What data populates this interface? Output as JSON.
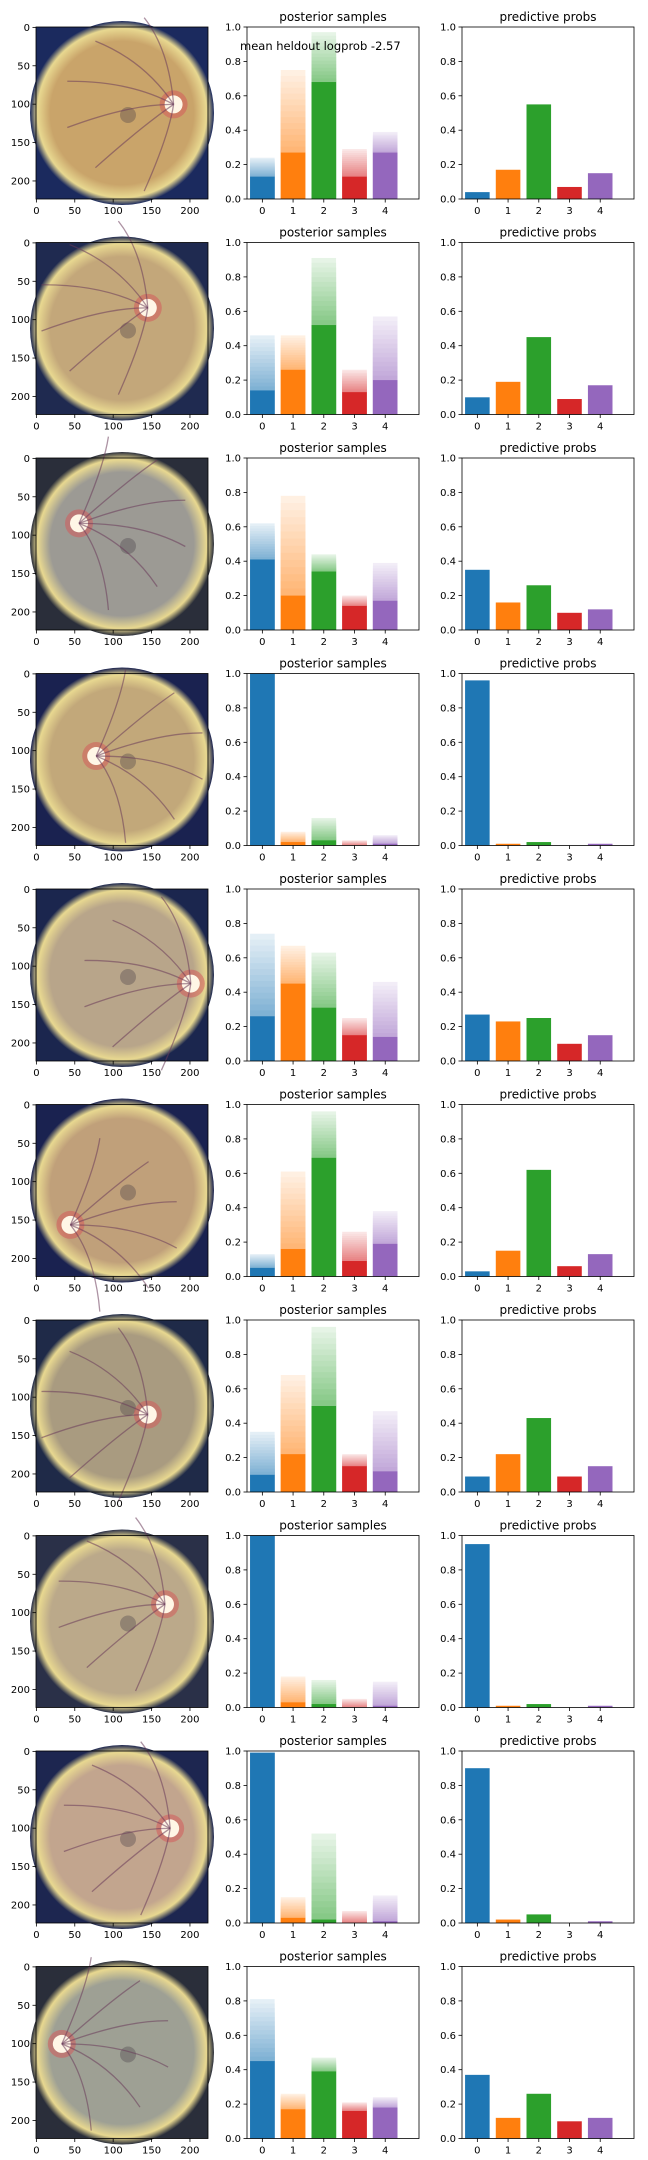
{
  "figure": {
    "annotation": "mean heldout logprob -2.57",
    "series_colors": [
      "#1f77b4",
      "#ff7f0e",
      "#2ca02c",
      "#d62728",
      "#9467bd"
    ],
    "fundus_image_axis": {
      "xticks": [
        0,
        50,
        100,
        150,
        200
      ],
      "yticks": [
        0,
        50,
        100,
        150,
        200
      ],
      "extent": 224
    },
    "posterior_axis": {
      "ylim": [
        0,
        1
      ],
      "yticks": [
        "0.0",
        "0.2",
        "0.4",
        "0.6",
        "0.8",
        "1.0"
      ]
    },
    "predictive_axis": {
      "ylim": [
        0,
        1
      ],
      "yticks": [
        "0.0",
        "0.2",
        "0.4",
        "0.6",
        "0.8",
        "1.0"
      ]
    }
  },
  "chart_data": [
    {
      "type": "bar",
      "title": "posterior samples",
      "categories": [
        "0",
        "1",
        "2",
        "3",
        "4"
      ],
      "row": 1,
      "sample_max": [
        0.24,
        0.75,
        0.97,
        0.29,
        0.39
      ],
      "solid_level": [
        0.13,
        0.27,
        0.68,
        0.13,
        0.27
      ],
      "ylim": [
        0,
        1
      ]
    },
    {
      "type": "bar",
      "title": "predictive probs",
      "categories": [
        "0",
        "1",
        "2",
        "3",
        "4"
      ],
      "row": 1,
      "values": [
        0.04,
        0.17,
        0.55,
        0.07,
        0.15
      ],
      "ylim": [
        0,
        1
      ]
    },
    {
      "type": "bar",
      "title": "posterior samples",
      "categories": [
        "0",
        "1",
        "2",
        "3",
        "4"
      ],
      "row": 2,
      "sample_max": [
        0.46,
        0.46,
        0.91,
        0.26,
        0.57
      ],
      "solid_level": [
        0.14,
        0.26,
        0.52,
        0.13,
        0.2
      ],
      "ylim": [
        0,
        1
      ]
    },
    {
      "type": "bar",
      "title": "predictive probs",
      "categories": [
        "0",
        "1",
        "2",
        "3",
        "4"
      ],
      "row": 2,
      "values": [
        0.1,
        0.19,
        0.45,
        0.09,
        0.17
      ],
      "ylim": [
        0,
        1
      ]
    },
    {
      "type": "bar",
      "title": "posterior samples",
      "categories": [
        "0",
        "1",
        "2",
        "3",
        "4"
      ],
      "row": 3,
      "sample_max": [
        0.62,
        0.78,
        0.44,
        0.2,
        0.39
      ],
      "solid_level": [
        0.41,
        0.2,
        0.34,
        0.14,
        0.17
      ],
      "ylim": [
        0,
        1
      ]
    },
    {
      "type": "bar",
      "title": "predictive probs",
      "categories": [
        "0",
        "1",
        "2",
        "3",
        "4"
      ],
      "row": 3,
      "values": [
        0.35,
        0.16,
        0.26,
        0.1,
        0.12
      ],
      "ylim": [
        0,
        1
      ]
    },
    {
      "type": "bar",
      "title": "posterior samples",
      "categories": [
        "0",
        "1",
        "2",
        "3",
        "4"
      ],
      "row": 4,
      "sample_max": [
        1.0,
        0.08,
        0.16,
        0.03,
        0.06
      ],
      "solid_level": [
        1.0,
        0.02,
        0.03,
        0.0,
        0.01
      ],
      "ylim": [
        0,
        1
      ]
    },
    {
      "type": "bar",
      "title": "predictive probs",
      "categories": [
        "0",
        "1",
        "2",
        "3",
        "4"
      ],
      "row": 4,
      "values": [
        0.96,
        0.01,
        0.02,
        0.0,
        0.01
      ],
      "ylim": [
        0,
        1
      ]
    },
    {
      "type": "bar",
      "title": "posterior samples",
      "categories": [
        "0",
        "1",
        "2",
        "3",
        "4"
      ],
      "row": 5,
      "sample_max": [
        0.74,
        0.67,
        0.63,
        0.25,
        0.46
      ],
      "solid_level": [
        0.26,
        0.45,
        0.31,
        0.15,
        0.14
      ],
      "ylim": [
        0,
        1
      ]
    },
    {
      "type": "bar",
      "title": "predictive probs",
      "categories": [
        "0",
        "1",
        "2",
        "3",
        "4"
      ],
      "row": 5,
      "values": [
        0.27,
        0.23,
        0.25,
        0.1,
        0.15
      ],
      "ylim": [
        0,
        1
      ]
    },
    {
      "type": "bar",
      "title": "posterior samples",
      "categories": [
        "0",
        "1",
        "2",
        "3",
        "4"
      ],
      "row": 6,
      "sample_max": [
        0.13,
        0.61,
        0.96,
        0.26,
        0.38
      ],
      "solid_level": [
        0.05,
        0.16,
        0.69,
        0.09,
        0.19
      ],
      "ylim": [
        0,
        1
      ]
    },
    {
      "type": "bar",
      "title": "predictive probs",
      "categories": [
        "0",
        "1",
        "2",
        "3",
        "4"
      ],
      "row": 6,
      "values": [
        0.03,
        0.15,
        0.62,
        0.06,
        0.13
      ],
      "ylim": [
        0,
        1
      ]
    },
    {
      "type": "bar",
      "title": "posterior samples",
      "categories": [
        "0",
        "1",
        "2",
        "3",
        "4"
      ],
      "row": 7,
      "sample_max": [
        0.35,
        0.68,
        0.96,
        0.22,
        0.47
      ],
      "solid_level": [
        0.1,
        0.22,
        0.5,
        0.15,
        0.12
      ],
      "ylim": [
        0,
        1
      ]
    },
    {
      "type": "bar",
      "title": "predictive probs",
      "categories": [
        "0",
        "1",
        "2",
        "3",
        "4"
      ],
      "row": 7,
      "values": [
        0.09,
        0.22,
        0.43,
        0.09,
        0.15
      ],
      "ylim": [
        0,
        1
      ]
    },
    {
      "type": "bar",
      "title": "posterior samples",
      "categories": [
        "0",
        "1",
        "2",
        "3",
        "4"
      ],
      "row": 8,
      "sample_max": [
        1.0,
        0.18,
        0.16,
        0.05,
        0.15
      ],
      "solid_level": [
        1.0,
        0.03,
        0.02,
        0.0,
        0.01
      ],
      "ylim": [
        0,
        1
      ]
    },
    {
      "type": "bar",
      "title": "predictive probs",
      "categories": [
        "0",
        "1",
        "2",
        "3",
        "4"
      ],
      "row": 8,
      "values": [
        0.95,
        0.01,
        0.02,
        0.0,
        0.01
      ],
      "ylim": [
        0,
        1
      ]
    },
    {
      "type": "bar",
      "title": "posterior samples",
      "categories": [
        "0",
        "1",
        "2",
        "3",
        "4"
      ],
      "row": 9,
      "sample_max": [
        0.99,
        0.15,
        0.52,
        0.07,
        0.16
      ],
      "solid_level": [
        0.99,
        0.03,
        0.02,
        0.0,
        0.01
      ],
      "ylim": [
        0,
        1
      ]
    },
    {
      "type": "bar",
      "title": "predictive probs",
      "categories": [
        "0",
        "1",
        "2",
        "3",
        "4"
      ],
      "row": 9,
      "values": [
        0.9,
        0.02,
        0.05,
        0.0,
        0.01
      ],
      "ylim": [
        0,
        1
      ]
    },
    {
      "type": "bar",
      "title": "posterior samples",
      "categories": [
        "0",
        "1",
        "2",
        "3",
        "4"
      ],
      "row": 10,
      "sample_max": [
        0.81,
        0.26,
        0.47,
        0.21,
        0.24
      ],
      "solid_level": [
        0.45,
        0.17,
        0.39,
        0.16,
        0.18
      ],
      "ylim": [
        0,
        1
      ]
    },
    {
      "type": "bar",
      "title": "predictive probs",
      "categories": [
        "0",
        "1",
        "2",
        "3",
        "4"
      ],
      "row": 10,
      "values": [
        0.37,
        0.12,
        0.26,
        0.1,
        0.12
      ],
      "ylim": [
        0,
        1
      ]
    }
  ]
}
